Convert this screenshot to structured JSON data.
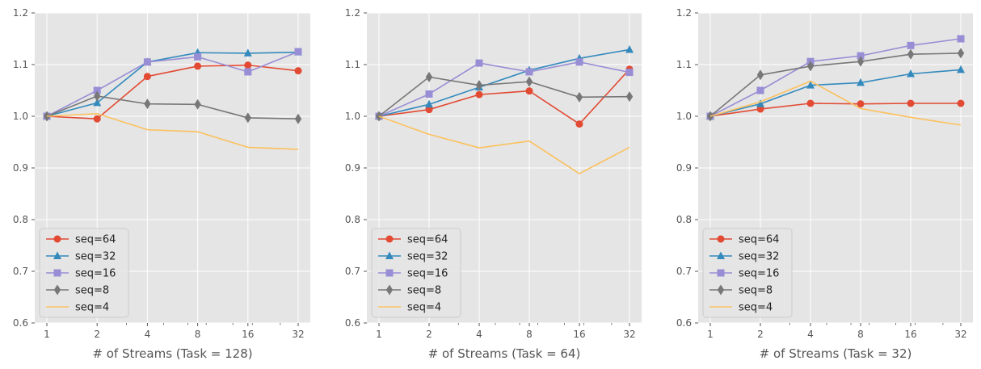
{
  "colors": {
    "background": "#e5e5e5",
    "grid": "#ffffff",
    "seq64": "#e24a33",
    "seq32": "#348abd",
    "seq16": "#988ed5",
    "seq8": "#777777",
    "seq4": "#fbc15e"
  },
  "chart_data": [
    {
      "type": "line",
      "xscale": "log2",
      "x": [
        1,
        2,
        4,
        8,
        16,
        32
      ],
      "x_tick_labels": [
        "1",
        "2",
        "4",
        "8",
        "16",
        "32"
      ],
      "y_tick_labels": [
        "0.6",
        "0.7",
        "0.8",
        "0.9",
        "1.0",
        "1.1",
        "1.2"
      ],
      "ylim": [
        0.6,
        1.2
      ],
      "xlabel": "# of Streams (Task = 128)",
      "grid": true,
      "legend_location": "lower-left",
      "series": [
        {
          "name": "seq=64",
          "marker": "circle",
          "color": "#e24a33",
          "values": [
            1.0,
            0.995,
            1.077,
            1.097,
            1.099,
            1.088
          ]
        },
        {
          "name": "seq=32",
          "marker": "triangle",
          "color": "#348abd",
          "values": [
            1.0,
            1.026,
            1.105,
            1.123,
            1.122,
            1.124
          ]
        },
        {
          "name": "seq=16",
          "marker": "square",
          "color": "#988ed5",
          "values": [
            1.0,
            1.05,
            1.105,
            1.115,
            1.086,
            1.125
          ]
        },
        {
          "name": "seq=8",
          "marker": "diamond",
          "color": "#777777",
          "values": [
            1.0,
            1.039,
            1.024,
            1.023,
            0.997,
            0.995
          ]
        },
        {
          "name": "seq=4",
          "marker": "none",
          "color": "#fbc15e",
          "values": [
            1.0,
            1.005,
            0.974,
            0.97,
            0.94,
            0.936
          ]
        }
      ]
    },
    {
      "type": "line",
      "xscale": "log2",
      "x": [
        1,
        2,
        4,
        8,
        16,
        32
      ],
      "x_tick_labels": [
        "1",
        "2",
        "4",
        "8",
        "16",
        "32"
      ],
      "y_tick_labels": [
        "0.6",
        "0.7",
        "0.8",
        "0.9",
        "1.0",
        "1.1",
        "1.2"
      ],
      "ylim": [
        0.6,
        1.2
      ],
      "xlabel": "# of Streams (Task = 64)",
      "grid": true,
      "legend_location": "lower-left",
      "series": [
        {
          "name": "seq=64",
          "marker": "circle",
          "color": "#e24a33",
          "values": [
            1.0,
            1.013,
            1.042,
            1.049,
            0.985,
            1.091
          ]
        },
        {
          "name": "seq=32",
          "marker": "triangle",
          "color": "#348abd",
          "values": [
            1.0,
            1.023,
            1.056,
            1.089,
            1.112,
            1.129
          ]
        },
        {
          "name": "seq=16",
          "marker": "square",
          "color": "#988ed5",
          "values": [
            1.0,
            1.043,
            1.103,
            1.086,
            1.105,
            1.085
          ]
        },
        {
          "name": "seq=8",
          "marker": "diamond",
          "color": "#777777",
          "values": [
            1.0,
            1.076,
            1.06,
            1.067,
            1.037,
            1.038
          ]
        },
        {
          "name": "seq=4",
          "marker": "none",
          "color": "#fbc15e",
          "values": [
            1.0,
            0.965,
            0.939,
            0.952,
            0.889,
            0.94
          ]
        }
      ]
    },
    {
      "type": "line",
      "xscale": "log2",
      "x": [
        1,
        2,
        4,
        8,
        16,
        32
      ],
      "x_tick_labels": [
        "1",
        "2",
        "4",
        "8",
        "16",
        "32"
      ],
      "y_tick_labels": [
        "0.6",
        "0.7",
        "0.8",
        "0.9",
        "1.0",
        "1.1",
        "1.2"
      ],
      "ylim": [
        0.6,
        1.2
      ],
      "xlabel": "# of Streams (Task = 32)",
      "grid": true,
      "legend_location": "lower-left",
      "series": [
        {
          "name": "seq=64",
          "marker": "circle",
          "color": "#e24a33",
          "values": [
            1.0,
            1.014,
            1.025,
            1.024,
            1.025,
            1.025
          ]
        },
        {
          "name": "seq=32",
          "marker": "triangle",
          "color": "#348abd",
          "values": [
            1.0,
            1.024,
            1.06,
            1.065,
            1.082,
            1.09
          ]
        },
        {
          "name": "seq=16",
          "marker": "square",
          "color": "#988ed5",
          "values": [
            1.0,
            1.05,
            1.106,
            1.117,
            1.137,
            1.15
          ]
        },
        {
          "name": "seq=8",
          "marker": "diamond",
          "color": "#777777",
          "values": [
            1.0,
            1.08,
            1.097,
            1.106,
            1.12,
            1.122
          ]
        },
        {
          "name": "seq=4",
          "marker": "none",
          "color": "#fbc15e",
          "values": [
            1.0,
            1.028,
            1.068,
            1.015,
            0.998,
            0.983
          ]
        }
      ]
    }
  ]
}
